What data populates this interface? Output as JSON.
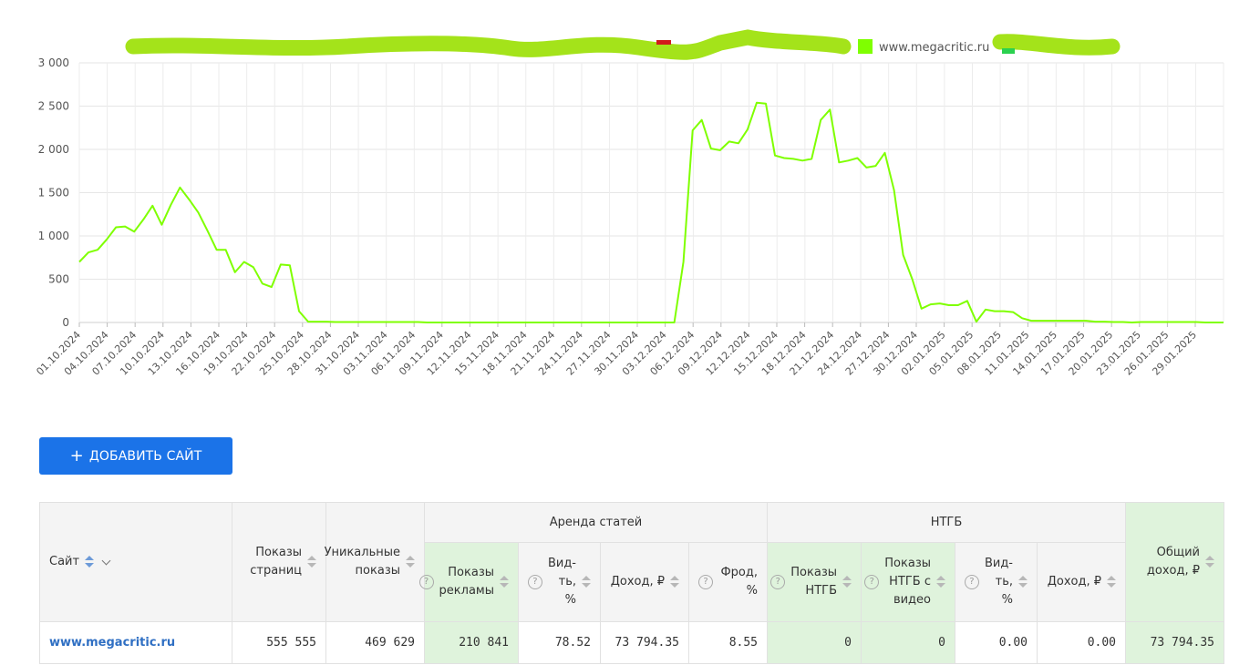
{
  "chart_data": {
    "type": "line",
    "title": "",
    "xlabel": "",
    "ylabel": "",
    "ylim": [
      0,
      3000
    ],
    "y_ticks": [
      "3 000",
      "2 500",
      "2 000",
      "1 500",
      "1 000",
      "500",
      "0"
    ],
    "grid": true,
    "legend_position": "top-center",
    "x_ticks": [
      "01.10.2024",
      "04.10.2024",
      "07.10.2024",
      "10.10.2024",
      "13.10.2024",
      "16.10.2024",
      "19.10.2024",
      "22.10.2024",
      "25.10.2024",
      "28.10.2024",
      "31.10.2024",
      "03.11.2024",
      "06.11.2024",
      "09.11.2024",
      "12.11.2024",
      "15.11.2024",
      "18.11.2024",
      "21.11.2024",
      "24.11.2024",
      "27.11.2024",
      "30.11.2024",
      "03.12.2024",
      "06.12.2024",
      "09.12.2024",
      "12.12.2024",
      "15.12.2024",
      "18.12.2024",
      "21.12.2024",
      "24.12.2024",
      "27.12.2024",
      "30.12.2024",
      "02.01.2025",
      "05.01.2025",
      "08.01.2025",
      "11.01.2025",
      "14.01.2025",
      "17.01.2025",
      "20.01.2025",
      "23.01.2025",
      "26.01.2025",
      "29.01.2025"
    ],
    "series": [
      {
        "name": "www.megacritic.ru",
        "color": "#7fff00",
        "values": [
          700,
          810,
          840,
          960,
          1100,
          1110,
          1050,
          1190,
          1350,
          1130,
          1360,
          1560,
          1420,
          1270,
          1060,
          840,
          840,
          580,
          700,
          640,
          450,
          410,
          670,
          660,
          130,
          10,
          10,
          10,
          5,
          5,
          5,
          5,
          5,
          5,
          5,
          5,
          5,
          5,
          0,
          0,
          0,
          0,
          0,
          0,
          0,
          0,
          0,
          0,
          0,
          0,
          0,
          0,
          0,
          0,
          0,
          0,
          0,
          0,
          0,
          0,
          0,
          0,
          0,
          0,
          0,
          0,
          700,
          2220,
          2340,
          2010,
          1990,
          2090,
          2070,
          2230,
          2540,
          2530,
          1930,
          1900,
          1890,
          1870,
          1890,
          2340,
          2460,
          1850,
          1870,
          1900,
          1790,
          1810,
          1960,
          1530,
          780,
          500,
          160,
          210,
          220,
          200,
          200,
          250,
          10,
          150,
          130,
          130,
          120,
          50,
          20,
          20,
          20,
          20,
          20,
          20,
          20,
          10,
          10,
          5,
          5,
          0,
          5,
          5,
          5,
          5,
          5,
          5,
          5,
          0,
          0,
          0
        ]
      }
    ]
  },
  "legend": {
    "items": [
      {
        "label": "www.megacritic.ru",
        "color": "#7fff00"
      }
    ],
    "redaction_color": "#a4e31a"
  },
  "actions": {
    "add_site_label": "ДОБАВИТЬ САЙТ"
  },
  "table": {
    "headers": {
      "site": "Сайт",
      "page_views": "Показы страниц",
      "unique_views": "Уникальные показы",
      "group_articles": "Аренда статей",
      "ad_views": "Показы рекламы",
      "visibility": "Вид-ть, %",
      "income": "Доход, ₽",
      "fraud": "Фрод, %",
      "group_ntgb": "НТГБ",
      "ntgb_views": "Показы НТГБ",
      "ntgb_video_views": "Показы НТГБ с видео",
      "ntgb_visibility": "Вид-ть, %",
      "ntgb_income": "Доход, ₽",
      "total_income": "Общий доход, ₽"
    },
    "rows": [
      {
        "site": "www.megacritic.ru",
        "page_views": "555 555",
        "unique_views": "469 629",
        "ad_views": "210 841",
        "visibility": "78.52",
        "income": "73 794.35",
        "fraud": "8.55",
        "ntgb_views": "0",
        "ntgb_video_views": "0",
        "ntgb_visibility": "0.00",
        "ntgb_income": "0.00",
        "total_income": "73 794.35"
      }
    ]
  }
}
